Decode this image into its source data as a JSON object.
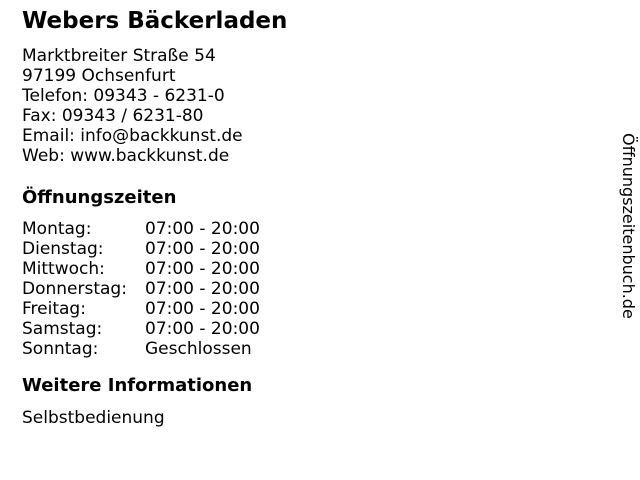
{
  "business": {
    "name": "Webers Bäckerladen",
    "address_lines": [
      "Marktbreiter Straße 54",
      "97199 Ochsenfurt",
      "Telefon: 09343 - 6231-0",
      "Fax: 09343 / 6231-80",
      "Email: info@backkunst.de",
      "Web: www.backkunst.de"
    ]
  },
  "hours": {
    "heading": "Öffnungszeiten",
    "rows": [
      {
        "day": "Montag:",
        "time": "07:00 - 20:00"
      },
      {
        "day": "Dienstag:",
        "time": "07:00 - 20:00"
      },
      {
        "day": "Mittwoch:",
        "time": "07:00 - 20:00"
      },
      {
        "day": "Donnerstag:",
        "time": "07:00 - 20:00"
      },
      {
        "day": "Freitag:",
        "time": "07:00 - 20:00"
      },
      {
        "day": "Samstag:",
        "time": "07:00 - 20:00"
      },
      {
        "day": "Sonntag:",
        "time": "Geschlossen"
      }
    ]
  },
  "more_info": {
    "heading": "Weitere Informationen",
    "text": "Selbstbedienung"
  },
  "watermark": {
    "text": "Öffnungszeitenbuch.de"
  },
  "colors": {
    "text": "#000000",
    "background": "#ffffff"
  }
}
